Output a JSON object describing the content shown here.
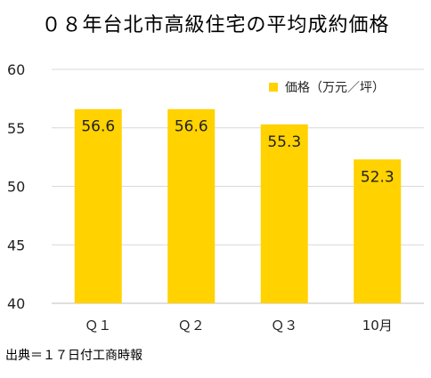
{
  "title": "０８年台北市高級住宅の平均成約価格",
  "source": "出典＝１７日付工商時報",
  "colors": {
    "bar": "#FFD200",
    "grid": "#D9D9D9",
    "text": "#222222"
  },
  "chart_data": {
    "type": "bar",
    "title": "０８年台北市高級住宅の平均成約価格",
    "categories": [
      "Ｑ１",
      "Ｑ２",
      "Ｑ３",
      "10月"
    ],
    "series": [
      {
        "name": "価格（万元／坪）",
        "values": [
          56.6,
          56.6,
          55.3,
          52.3
        ]
      }
    ],
    "data_labels": [
      "56.6",
      "56.6",
      "55.3",
      "52.3"
    ],
    "ylim": [
      40,
      60
    ],
    "yticks": [
      40,
      45,
      50,
      55,
      60
    ],
    "ytick_labels": [
      "40",
      "45",
      "50",
      "55",
      "60"
    ],
    "grid": true,
    "legend_position": "top-right"
  }
}
